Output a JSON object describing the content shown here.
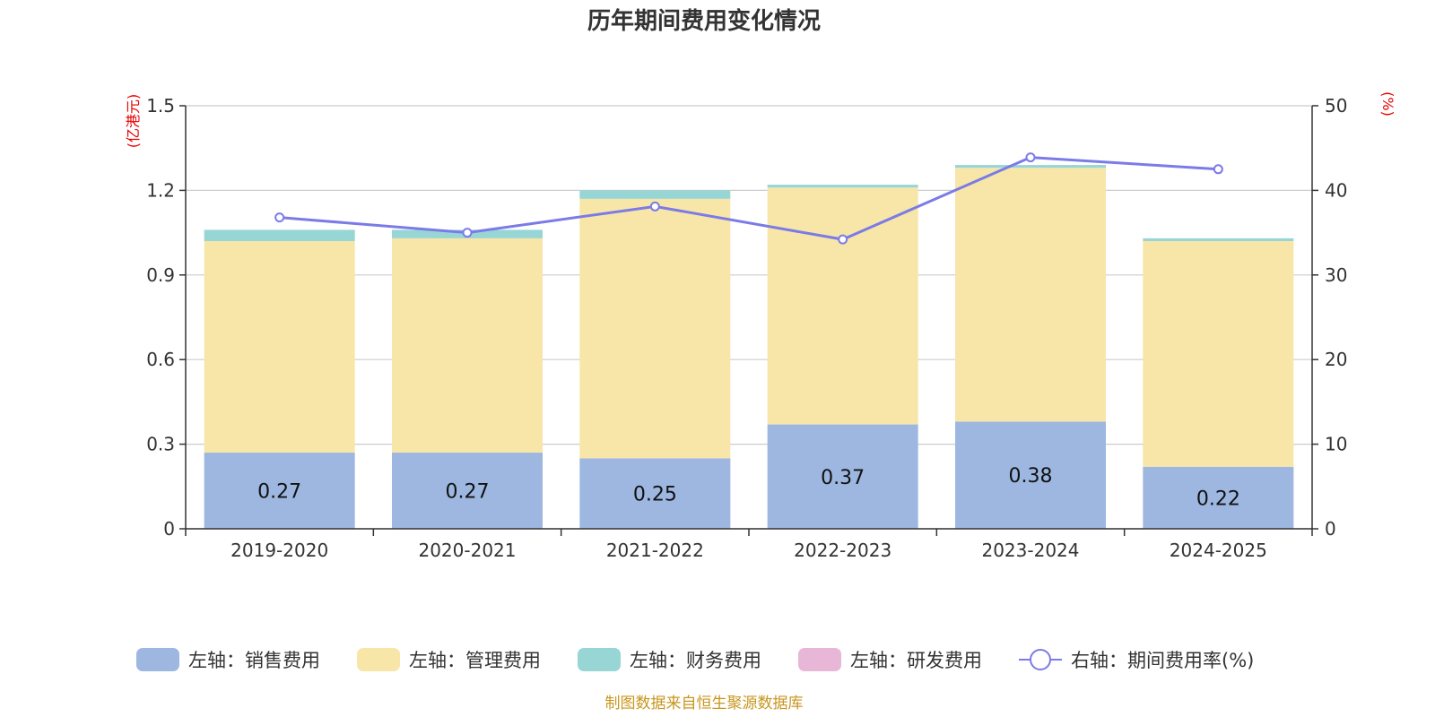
{
  "chart_data": {
    "type": "bar",
    "title": "历年期间费用变化情况",
    "categories": [
      "2019-2020",
      "2020-2021",
      "2021-2022",
      "2022-2023",
      "2023-2024",
      "2024-2025"
    ],
    "series": [
      {
        "name": "左轴：销售费用",
        "axis": "left",
        "kind": "stacked-bar",
        "color": "#9db7e1",
        "values": [
          0.27,
          0.27,
          0.25,
          0.37,
          0.38,
          0.22
        ],
        "labels": [
          "0.27",
          "0.27",
          "0.25",
          "0.37",
          "0.38",
          "0.22"
        ]
      },
      {
        "name": "左轴：管理费用",
        "axis": "left",
        "kind": "stacked-bar",
        "color": "#f7e6a8",
        "values": [
          0.75,
          0.76,
          0.92,
          0.84,
          0.9,
          0.8
        ]
      },
      {
        "name": "左轴：财务费用",
        "axis": "left",
        "kind": "stacked-bar",
        "color": "#98d5d5",
        "values": [
          0.04,
          0.03,
          0.03,
          0.01,
          0.01,
          0.01
        ]
      },
      {
        "name": "左轴：研发费用",
        "axis": "left",
        "kind": "stacked-bar",
        "color": "#e8b7d8",
        "values": [
          0,
          0,
          0,
          0,
          0,
          0
        ]
      },
      {
        "name": "右轴：期间费用率(%)",
        "axis": "right",
        "kind": "line",
        "color": "#7b7be8",
        "values": [
          36.8,
          35.0,
          38.1,
          34.2,
          43.9,
          42.5
        ]
      }
    ],
    "y_left": {
      "label": "(亿港元)",
      "ylim": [
        0,
        1.5
      ],
      "ticks": [
        "0",
        "0.3",
        "0.6",
        "0.9",
        "1.2",
        "1.5"
      ]
    },
    "y_right": {
      "label": "(%)",
      "ylim": [
        0,
        50
      ],
      "ticks": [
        "0",
        "10",
        "20",
        "30",
        "40",
        "50"
      ]
    },
    "grid": true,
    "legend_position": "bottom"
  },
  "footer": "制图数据来自恒生聚源数据库"
}
